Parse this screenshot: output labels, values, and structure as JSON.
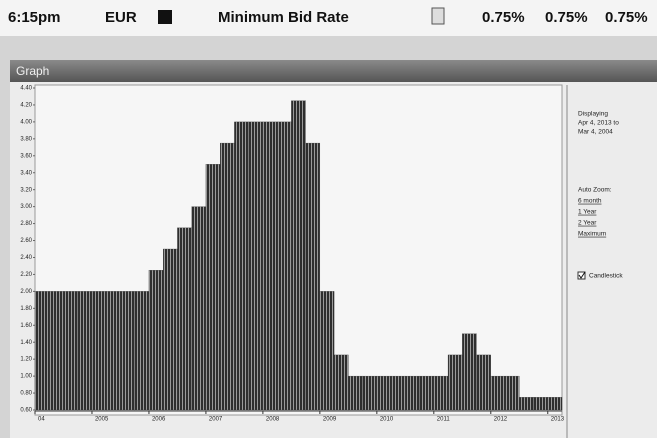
{
  "header": {
    "time": "6:15pm",
    "currency": "EUR",
    "label": "Minimum Bid Rate",
    "values": [
      "0.75%",
      "0.75%",
      "0.75%"
    ]
  },
  "panel": {
    "title": "Graph"
  },
  "sidebar": {
    "displaying": "Displaying",
    "from": "Apr 4, 2013 to",
    "to": "Mar 4, 2004",
    "zoom_title": "Auto Zoom:",
    "zoom_options": [
      "6 month",
      "1 Year",
      "2 Year",
      "Maximum"
    ],
    "checkbox": "Candlestick"
  },
  "chart_data": {
    "type": "bar",
    "color": "#3a3a3a",
    "x": [
      2004,
      2004.25,
      2004.5,
      2004.75,
      2005,
      2005.25,
      2005.5,
      2005.75,
      2006,
      2006.25,
      2006.5,
      2006.75,
      2007,
      2007.25,
      2007.5,
      2007.75,
      2008,
      2008.25,
      2008.5,
      2008.75,
      2009,
      2009.25,
      2009.5,
      2009.75,
      2010,
      2010.25,
      2010.5,
      2010.75,
      2011,
      2011.25,
      2011.5,
      2011.75,
      2012,
      2012.25,
      2012.5,
      2012.75,
      2013
    ],
    "values": [
      2,
      2,
      2,
      2,
      2,
      2,
      2,
      2,
      2.25,
      2.5,
      2.75,
      3,
      3.5,
      3.75,
      4,
      4,
      4,
      4,
      4.25,
      3.75,
      2,
      1.25,
      1,
      1,
      1,
      1,
      1,
      1,
      1,
      1.25,
      1.5,
      1.25,
      1,
      1,
      0.75,
      0.75,
      0.75
    ],
    "xlim": [
      2004,
      2013.25
    ],
    "xticks": [
      {
        "value": 2004,
        "label": "04"
      },
      2005,
      2006,
      2007,
      2008,
      2009,
      2010,
      2011,
      2012,
      2013
    ],
    "ylim": [
      0.6,
      4.4
    ],
    "yticks": [
      {
        "value": 0.6,
        "label": "0.60"
      },
      {
        "value": 0.8,
        "label": "0.80"
      },
      {
        "value": 1,
        "label": "1.00"
      },
      {
        "value": 1.2,
        "label": "1.20"
      },
      {
        "value": 1.4,
        "label": "1.40"
      },
      {
        "value": 1.6,
        "label": "1.60"
      },
      {
        "value": 1.8,
        "label": "1.80"
      },
      {
        "value": 2,
        "label": "2.00"
      },
      {
        "value": 2.2,
        "label": "2.20"
      },
      {
        "value": 2.4,
        "label": "2.40"
      },
      {
        "value": 2.6,
        "label": "2.60"
      },
      {
        "value": 2.8,
        "label": "2.80"
      },
      {
        "value": 3,
        "label": "3.00"
      },
      {
        "value": 3.2,
        "label": "3.20"
      },
      {
        "value": 3.4,
        "label": "3.40"
      },
      {
        "value": 3.6,
        "label": "3.60"
      },
      {
        "value": 3.8,
        "label": "3.80"
      },
      {
        "value": 4,
        "label": "4.00"
      },
      {
        "value": 4.2,
        "label": "4.20"
      },
      {
        "value": 4.4,
        "label": "4.40"
      }
    ]
  }
}
